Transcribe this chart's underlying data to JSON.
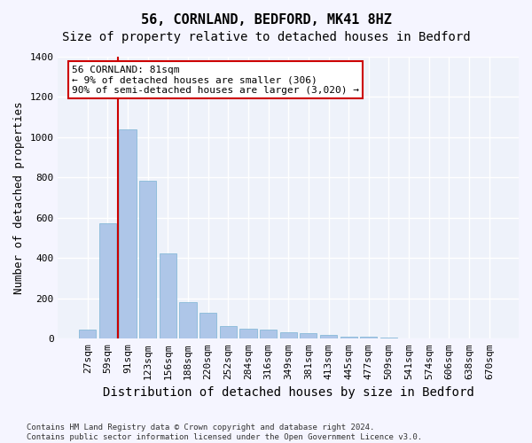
{
  "title": "56, CORNLAND, BEDFORD, MK41 8HZ",
  "subtitle": "Size of property relative to detached houses in Bedford",
  "xlabel": "Distribution of detached houses by size in Bedford",
  "ylabel": "Number of detached properties",
  "categories": [
    "27sqm",
    "59sqm",
    "91sqm",
    "123sqm",
    "156sqm",
    "188sqm",
    "220sqm",
    "252sqm",
    "284sqm",
    "316sqm",
    "349sqm",
    "381sqm",
    "413sqm",
    "445sqm",
    "477sqm",
    "509sqm",
    "541sqm",
    "574sqm",
    "606sqm",
    "638sqm",
    "670sqm"
  ],
  "values": [
    45,
    575,
    1040,
    785,
    425,
    180,
    128,
    65,
    50,
    45,
    30,
    28,
    20,
    12,
    8,
    5,
    3,
    2,
    1,
    1,
    0
  ],
  "bar_color": "#aec6e8",
  "bar_edge_color": "#7ab3d4",
  "highlight_bar_index": 1,
  "highlight_line_color": "#cc0000",
  "annotation_text": "56 CORNLAND: 81sqm\n← 9% of detached houses are smaller (306)\n90% of semi-detached houses are larger (3,020) →",
  "annotation_box_color": "#ffffff",
  "annotation_box_edge_color": "#cc0000",
  "ylim": [
    0,
    1400
  ],
  "yticks": [
    0,
    200,
    400,
    600,
    800,
    1000,
    1200,
    1400
  ],
  "background_color": "#eef2fa",
  "grid_color": "#ffffff",
  "title_fontsize": 11,
  "subtitle_fontsize": 10,
  "xlabel_fontsize": 10,
  "ylabel_fontsize": 9,
  "tick_fontsize": 8,
  "annotation_fontsize": 8,
  "footer_text": "Contains HM Land Registry data © Crown copyright and database right 2024.\nContains public sector information licensed under the Open Government Licence v3.0."
}
